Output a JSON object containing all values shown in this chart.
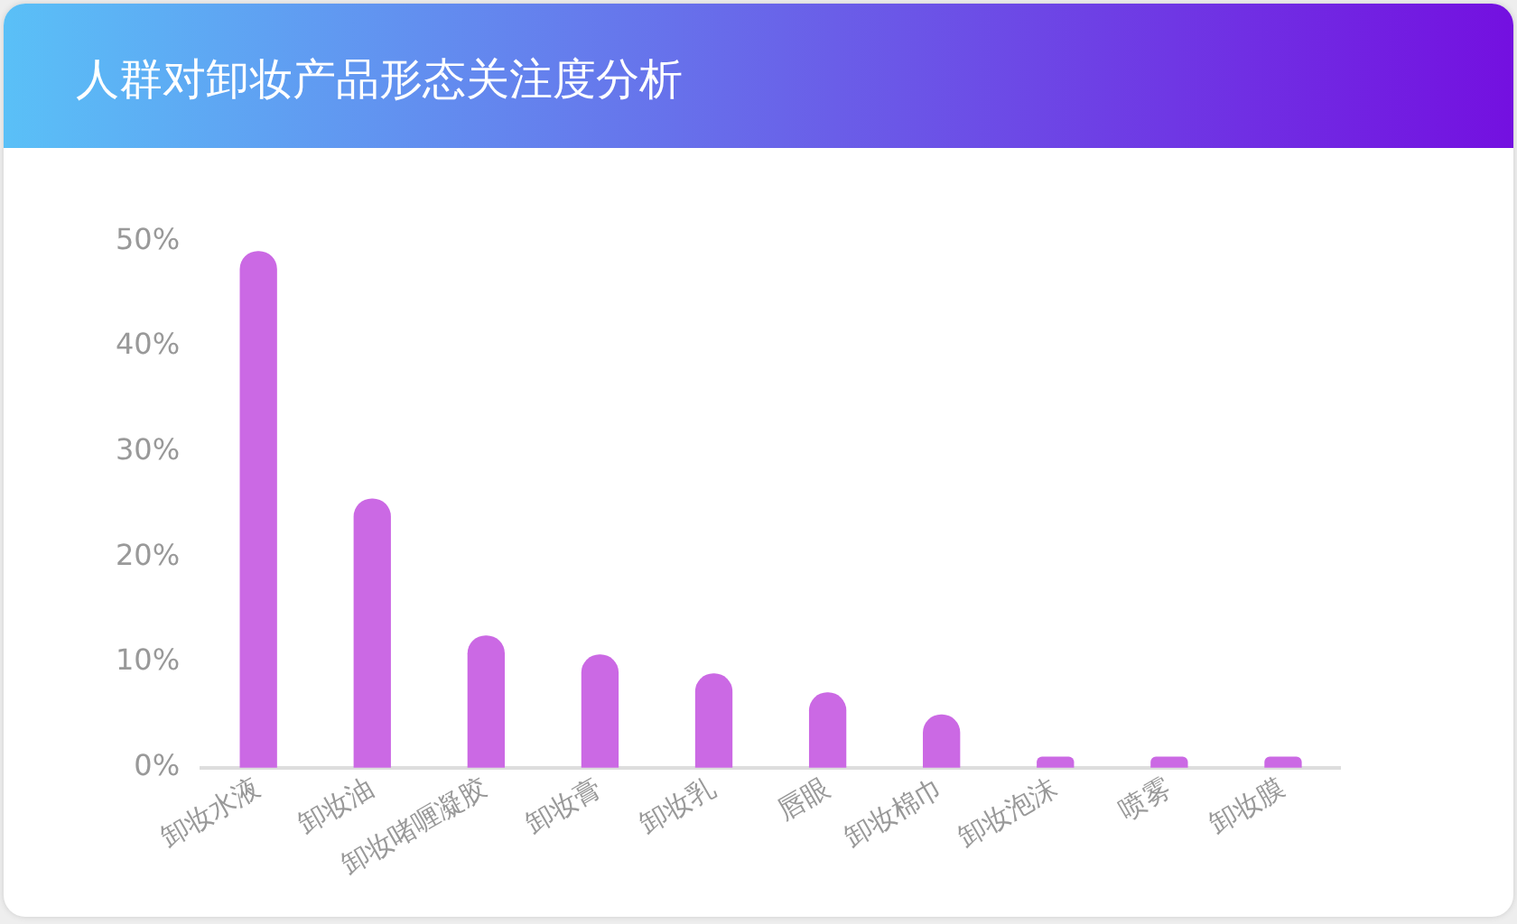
{
  "chart_data": {
    "type": "bar",
    "title": "人群对卸妆产品形态关注度分析",
    "categories": [
      "卸妆水液",
      "卸妆油",
      "卸妆啫喱凝胶",
      "卸妆膏",
      "卸妆乳",
      "唇眼",
      "卸妆棉巾",
      "卸妆泡沫",
      "喷雾",
      "卸妆膜"
    ],
    "values": [
      49,
      25.5,
      12.5,
      10.7,
      8.9,
      7.1,
      5,
      1,
      1,
      1
    ],
    "color": "#cb69e4",
    "ylim": [
      0,
      50
    ],
    "yticks": [
      {
        "value": 0,
        "label": "0%"
      },
      {
        "value": 10,
        "label": "10%"
      },
      {
        "value": 20,
        "label": "20%"
      },
      {
        "value": 30,
        "label": "30%"
      },
      {
        "value": 40,
        "label": "40%"
      },
      {
        "value": 50,
        "label": "50%"
      }
    ],
    "grid": false,
    "legend": false
  }
}
